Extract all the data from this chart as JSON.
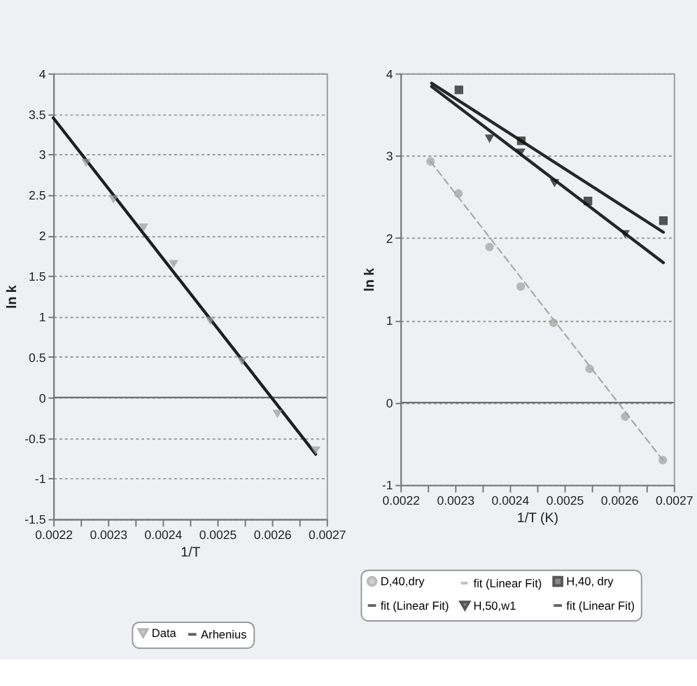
{
  "chart_data": [
    {
      "type": "scatter",
      "xlabel": "1/T",
      "ylabel": "ln k",
      "xlim": [
        0.0022,
        0.0027
      ],
      "xticks": [
        0.0022,
        {
          "value": 0.00225,
          "label": null
        },
        0.0023,
        {
          "value": 0.00235,
          "label": null
        },
        0.0024,
        {
          "value": 0.00245,
          "label": null
        },
        0.0025,
        {
          "value": 0.00255,
          "label": null
        },
        0.0026,
        {
          "value": 0.00265,
          "label": null
        },
        0.0027
      ],
      "ylim": [
        -1.5,
        4
      ],
      "yticks": [
        -1.5,
        -1,
        -0.5,
        0,
        0.5,
        1,
        1.5,
        2,
        2.5,
        3,
        3.5,
        4
      ],
      "grid": "y",
      "legend": "bottom",
      "ref_lines": [
        {
          "axis": "y",
          "value": 0,
          "color": "#6e6e6e"
        }
      ],
      "series": [
        {
          "name": "Data",
          "marker": "triangle",
          "color": "#9a9a9a",
          "x": [
            0.00226,
            0.00231,
            0.002365,
            0.00242,
            0.002487,
            0.002545,
            0.00261,
            0.00268
          ],
          "values": [
            2.9,
            2.45,
            2.1,
            1.65,
            0.95,
            0.45,
            -0.2,
            -0.65
          ]
        },
        {
          "name": "Arhenius",
          "type": "line",
          "line_style": "solid",
          "color": "#1e1e1e",
          "x": [
            0.0022,
            0.00268
          ],
          "values": [
            3.45,
            -0.7
          ]
        }
      ]
    },
    {
      "type": "scatter",
      "xlabel": "1/T (K)",
      "ylabel": "ln k",
      "xlim": [
        0.0022,
        0.0027
      ],
      "xticks": [
        0.0022,
        {
          "value": 0.00225,
          "label": null
        },
        0.0023,
        {
          "value": 0.00235,
          "label": null
        },
        0.0024,
        {
          "value": 0.00245,
          "label": null
        },
        0.0025,
        {
          "value": 0.00255,
          "label": null
        },
        0.0026,
        {
          "value": 0.00265,
          "label": null
        },
        0.0027
      ],
      "ylim": [
        -1,
        4
      ],
      "yticks": [
        -1,
        0,
        1,
        2,
        3,
        4
      ],
      "grid": "y",
      "legend": "bottom",
      "ref_lines": [
        {
          "axis": "y",
          "value": 0,
          "color": "#6e6e6e"
        }
      ],
      "series": [
        {
          "name": "D,40,dry",
          "marker": "circle",
          "color": "#a0a0a0",
          "x": [
            0.002255,
            0.002306,
            0.002363,
            0.00242,
            0.00248,
            0.002546,
            0.002611,
            0.00268
          ],
          "values": [
            2.93,
            2.54,
            1.89,
            1.41,
            0.97,
            0.41,
            -0.17,
            -0.7
          ]
        },
        {
          "name": "fit (Linear Fit)",
          "type": "line",
          "line_style": "dashed",
          "color": "#a8a8a8",
          "x": [
            0.002255,
            0.00268
          ],
          "values": [
            2.93,
            -0.7
          ]
        },
        {
          "name": "H,40, dry",
          "marker": "square",
          "color": "#111111",
          "x": [
            0.002307,
            0.002421,
            0.002543,
            0.002681
          ],
          "values": [
            3.8,
            3.18,
            2.45,
            2.21
          ]
        },
        {
          "name": "fit (Linear Fit)",
          "type": "line",
          "line_style": "solid",
          "color": "#262626",
          "x": [
            0.002257,
            0.002681
          ],
          "values": [
            3.88,
            2.07
          ]
        },
        {
          "name": "H,50,w1",
          "marker": "triangle",
          "color": "#111111",
          "x": [
            0.002363,
            0.00242,
            0.002482,
            0.002611
          ],
          "values": [
            3.21,
            3.04,
            2.67,
            2.05
          ]
        },
        {
          "name": "fit (Linear Fit)",
          "type": "line",
          "line_style": "solid",
          "color": "#262626",
          "x": [
            0.002257,
            0.002681
          ],
          "values": [
            3.84,
            1.7
          ]
        }
      ]
    }
  ]
}
